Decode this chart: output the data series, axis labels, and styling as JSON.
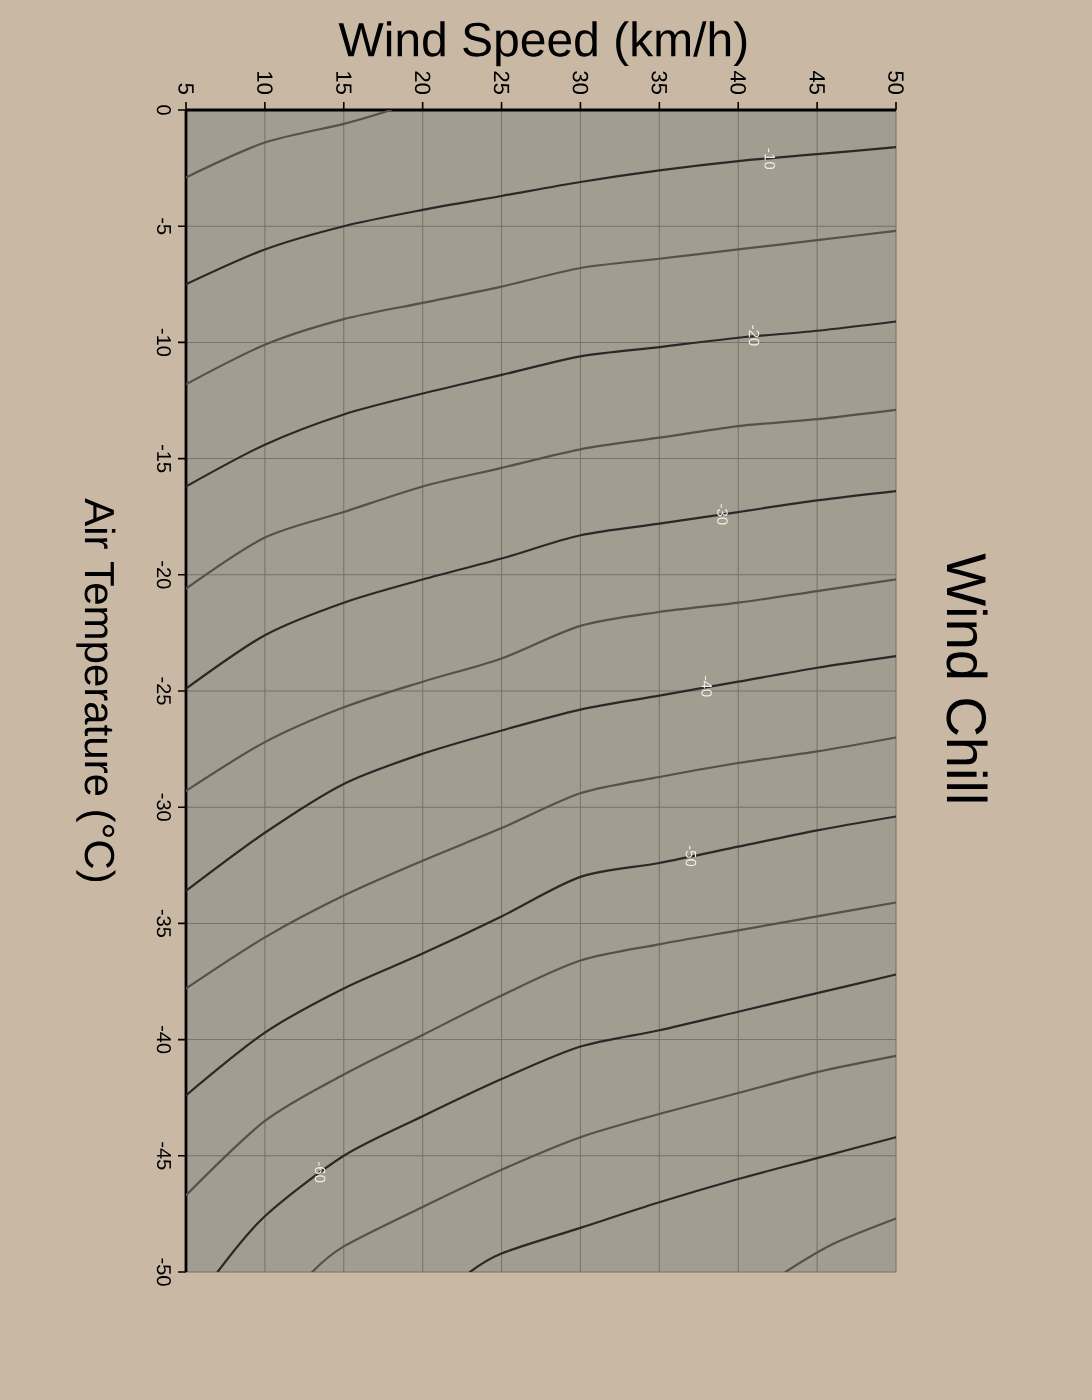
{
  "chart_data": {
    "type": "line",
    "title": "Wind Chill",
    "xlabel": "Wind Speed (km/h)",
    "ylabel": "Air Temperature (°C)",
    "xlim": [
      5,
      50
    ],
    "ylim": [
      -50,
      0
    ],
    "xticks": [
      5,
      10,
      15,
      20,
      25,
      30,
      35,
      40,
      45,
      50
    ],
    "yticks": [
      -50,
      -45,
      -40,
      -35,
      -30,
      -25,
      -20,
      -15,
      -10,
      -5,
      0
    ],
    "grid": true,
    "series": [
      {
        "color": "#55514b",
        "x": [
          5,
          10,
          15,
          18
        ],
        "values": [
          -2.9,
          -1.4,
          -0.6,
          0
        ]
      },
      {
        "color": "#2b2927",
        "x": [
          5,
          10,
          15,
          20,
          25,
          30,
          35,
          40,
          45,
          50
        ],
        "values": [
          -7.5,
          -6.0,
          -5.0,
          -4.3,
          -3.7,
          -3.1,
          -2.6,
          -2.2,
          -1.9,
          -1.6
        ]
      },
      {
        "color": "#55514b",
        "x": [
          5,
          10,
          15,
          20,
          25,
          30,
          35,
          40,
          45,
          50
        ],
        "values": [
          -11.8,
          -10.1,
          -9.0,
          -8.3,
          -7.6,
          -6.8,
          -6.4,
          -6.0,
          -5.6,
          -5.2
        ]
      },
      {
        "color": "#2b2927",
        "x": [
          5,
          10,
          15,
          20,
          25,
          30,
          35,
          40,
          45,
          50
        ],
        "values": [
          -16.2,
          -14.4,
          -13.1,
          -12.2,
          -11.4,
          -10.6,
          -10.2,
          -9.8,
          -9.5,
          -9.1
        ]
      },
      {
        "color": "#55514b",
        "x": [
          5,
          10,
          15,
          20,
          25,
          30,
          35,
          40,
          45,
          50
        ],
        "values": [
          -20.6,
          -18.4,
          -17.3,
          -16.2,
          -15.4,
          -14.6,
          -14.1,
          -13.6,
          -13.3,
          -12.9
        ]
      },
      {
        "color": "#2b2927",
        "x": [
          5,
          10,
          15,
          20,
          25,
          30,
          35,
          40,
          45,
          50
        ],
        "values": [
          -24.9,
          -22.6,
          -21.2,
          -20.2,
          -19.3,
          -18.3,
          -17.8,
          -17.3,
          -16.8,
          -16.4
        ]
      },
      {
        "color": "#55514b",
        "x": [
          5,
          10,
          15,
          20,
          25,
          30,
          35,
          40,
          45,
          50
        ],
        "values": [
          -29.3,
          -27.2,
          -25.7,
          -24.6,
          -23.6,
          -22.2,
          -21.6,
          -21.2,
          -20.7,
          -20.2
        ]
      },
      {
        "color": "#2b2927",
        "x": [
          5,
          10,
          15,
          20,
          25,
          30,
          35,
          40,
          45,
          50
        ],
        "values": [
          -33.6,
          -31.1,
          -29.0,
          -27.7,
          -26.7,
          -25.8,
          -25.2,
          -24.6,
          -24.0,
          -23.5
        ]
      },
      {
        "color": "#55514b",
        "x": [
          5,
          10,
          15,
          20,
          25,
          30,
          35,
          40,
          45,
          50
        ],
        "values": [
          -37.8,
          -35.6,
          -33.8,
          -32.3,
          -30.9,
          -29.4,
          -28.7,
          -28.1,
          -27.6,
          -27.0
        ]
      },
      {
        "color": "#2b2927",
        "x": [
          5,
          10,
          15,
          20,
          25,
          30,
          35,
          40,
          45,
          50
        ],
        "values": [
          -42.4,
          -39.7,
          -37.8,
          -36.3,
          -34.7,
          -33.0,
          -32.4,
          -31.7,
          -31.0,
          -30.4
        ]
      },
      {
        "color": "#55514b",
        "x": [
          5,
          10,
          15,
          20,
          25,
          30,
          35,
          40,
          45,
          50
        ],
        "values": [
          -46.7,
          -43.5,
          -41.5,
          -39.8,
          -38.1,
          -36.6,
          -35.9,
          -35.3,
          -34.7,
          -34.1
        ]
      },
      {
        "color": "#2b2927",
        "x": [
          7,
          10,
          15,
          20,
          25,
          30,
          35,
          40,
          45,
          50
        ],
        "values": [
          -50,
          -47.6,
          -45.0,
          -43.3,
          -41.7,
          -40.3,
          -39.6,
          -38.8,
          -38.0,
          -37.2
        ]
      },
      {
        "color": "#55514b",
        "x": [
          13,
          15,
          20,
          25,
          30,
          35,
          40,
          45,
          50
        ],
        "values": [
          -50,
          -48.9,
          -47.2,
          -45.6,
          -44.2,
          -43.2,
          -42.3,
          -41.4,
          -40.7
        ]
      },
      {
        "color": "#2b2927",
        "x": [
          23,
          25,
          30,
          35,
          40,
          45,
          50
        ],
        "values": [
          -50,
          -49.2,
          -48.1,
          -47.0,
          -46.0,
          -45.1,
          -44.2
        ]
      },
      {
        "color": "#55514b",
        "x": [
          43,
          46,
          50
        ],
        "values": [
          -50,
          -48.8,
          -47.7
        ]
      }
    ],
    "annotations": [
      {
        "text": "-10",
        "x": 42,
        "y": -2.1
      },
      {
        "text": "-20",
        "x": 41,
        "y": -9.7
      },
      {
        "text": "-30",
        "x": 39,
        "y": -17.4
      },
      {
        "text": "-40",
        "x": 38,
        "y": -24.8
      },
      {
        "text": "-50",
        "x": 37,
        "y": -32.1
      },
      {
        "text": "-60",
        "x": 13.5,
        "y": -45.7
      }
    ]
  }
}
